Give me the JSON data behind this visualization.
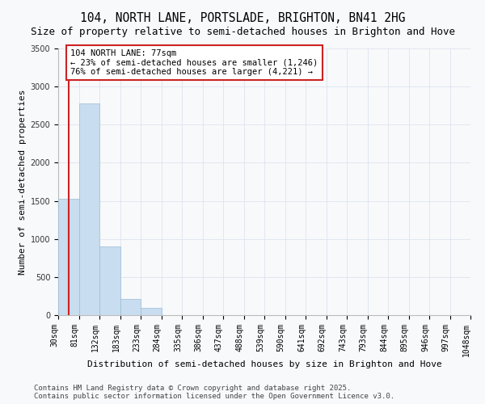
{
  "title": "104, NORTH LANE, PORTSLADE, BRIGHTON, BN41 2HG",
  "subtitle": "Size of property relative to semi-detached houses in Brighton and Hove",
  "xlabel": "Distribution of semi-detached houses by size in Brighton and Hove",
  "ylabel": "Number of semi-detached properties",
  "bin_labels": [
    "30sqm",
    "81sqm",
    "132sqm",
    "183sqm",
    "233sqm",
    "284sqm",
    "335sqm",
    "386sqm",
    "437sqm",
    "488sqm",
    "539sqm",
    "590sqm",
    "641sqm",
    "692sqm",
    "743sqm",
    "793sqm",
    "844sqm",
    "895sqm",
    "946sqm",
    "997sqm",
    "1048sqm"
  ],
  "values": [
    1530,
    2780,
    900,
    210,
    95,
    0,
    0,
    0,
    0,
    0,
    0,
    0,
    0,
    0,
    0,
    0,
    0,
    0,
    0,
    0
  ],
  "bar_color": "#c8ddef",
  "bar_edge_color": "#9bbdd4",
  "vline_color": "#cc2222",
  "vline_x": 0,
  "annotation_title": "104 NORTH LANE: 77sqm",
  "annotation_line1": "← 23% of semi-detached houses are smaller (1,246)",
  "annotation_line2": "76% of semi-detached houses are larger (4,221) →",
  "annotation_box_facecolor": "#ffffff",
  "annotation_box_edgecolor": "#cc2222",
  "ylim": [
    0,
    3500
  ],
  "yticks": [
    0,
    500,
    1000,
    1500,
    2000,
    2500,
    3000,
    3500
  ],
  "bg_color": "#f8f9fb",
  "grid_color": "#dde4ee",
  "title_fontsize": 10.5,
  "subtitle_fontsize": 9,
  "axis_label_fontsize": 8,
  "tick_fontsize": 7,
  "annotation_fontsize": 7.5,
  "footer_fontsize": 6.5,
  "footer1": "Contains HM Land Registry data © Crown copyright and database right 2025.",
  "footer2": "Contains public sector information licensed under the Open Government Licence v3.0."
}
